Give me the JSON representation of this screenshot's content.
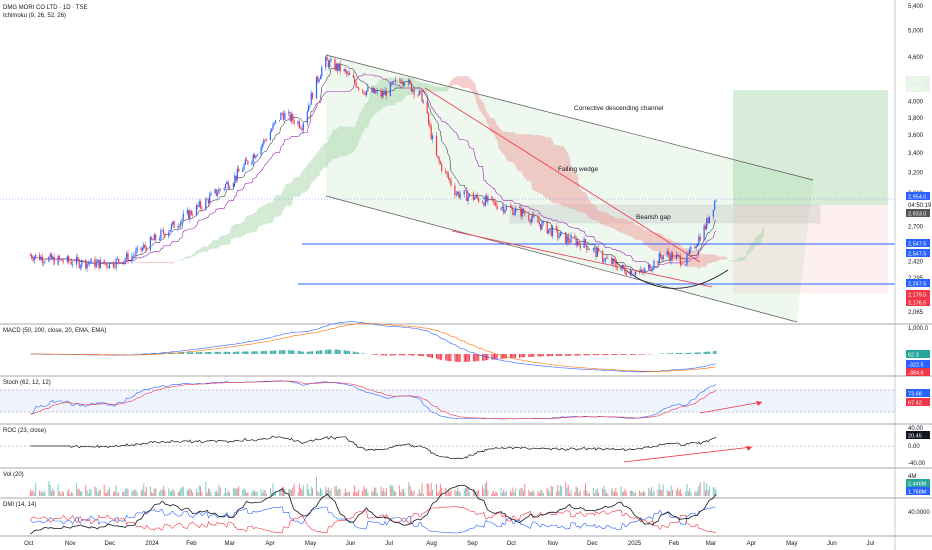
{
  "header": {
    "title": "DMG MORI CO LTD · 1D · TSE",
    "indicator": "Ichimoku (9, 26, 52, 26)"
  },
  "chart_data": [
    {
      "type": "candlestick",
      "title": "DMG MORI CO LTD · 1D · TSE",
      "ylim": [
        2000,
        5400
      ],
      "y_scale": "log",
      "y_ticks": [
        "5,400",
        "5,000",
        "4,600",
        "4,200",
        "4,000",
        "3,800",
        "3,600",
        "3,400",
        "3,200",
        "3,000",
        "2,700",
        "2,420",
        "2,295",
        "2,065"
      ],
      "x_ticks": [
        "Oct",
        "Nov",
        "Dec",
        "2024",
        "Feb",
        "Mar",
        "Apr",
        "May",
        "Jun",
        "Jul",
        "Aug",
        "Sep",
        "Oct",
        "Nov",
        "Dec",
        "2025",
        "Feb",
        "Mar",
        "Apr",
        "May",
        "Jun",
        "Jul"
      ],
      "price_path": [
        [
          "2023-10-01",
          2470
        ],
        [
          "2023-10-20",
          2430
        ],
        [
          "2023-11-10",
          2410
        ],
        [
          "2023-12-01",
          2400
        ],
        [
          "2023-12-20",
          2470
        ],
        [
          "2024-01-15",
          2680
        ],
        [
          "2024-02-10",
          2900
        ],
        [
          "2024-03-05",
          3150
        ],
        [
          "2024-03-25",
          3480
        ],
        [
          "2024-04-10",
          3850
        ],
        [
          "2024-04-25",
          3720
        ],
        [
          "2024-05-12",
          4540
        ],
        [
          "2024-05-25",
          4420
        ],
        [
          "2024-06-10",
          4150
        ],
        [
          "2024-06-25",
          4080
        ],
        [
          "2024-07-10",
          4310
        ],
        [
          "2024-07-25",
          4050
        ],
        [
          "2024-08-05",
          3350
        ],
        [
          "2024-08-20",
          3000
        ],
        [
          "2024-09-05",
          2950
        ],
        [
          "2024-09-25",
          2870
        ],
        [
          "2024-10-10",
          2820
        ],
        [
          "2024-10-25",
          2700
        ],
        [
          "2024-11-10",
          2600
        ],
        [
          "2024-11-25",
          2560
        ],
        [
          "2024-12-10",
          2440
        ],
        [
          "2024-12-25",
          2360
        ],
        [
          "2025-01-08",
          2330
        ],
        [
          "2025-01-25",
          2480
        ],
        [
          "2025-02-10",
          2420
        ],
        [
          "2025-02-25",
          2700
        ],
        [
          "2025-03-05",
          2954
        ]
      ],
      "price_labels": [
        {
          "label": "2,954.0",
          "sub": "04:50:19",
          "color": "#2962ff"
        },
        {
          "label": "2,933.0",
          "color": "#555555"
        },
        {
          "label": "2,547.5",
          "color": "#2962ff"
        },
        {
          "label": "2,547.5",
          "color": "#2962ff"
        },
        {
          "label": "2,247.5",
          "color": "#2962ff"
        },
        {
          "label": "2,179.5",
          "color": "#f23645"
        },
        {
          "label": "2,176.5",
          "color": "#f23645"
        },
        {
          "label": "4,375",
          "color": "#e8f3e8"
        },
        {
          "label": "4,369",
          "color": "#e8f3e8"
        }
      ],
      "annotations": [
        "Corrective descending channel",
        "Falling wedge",
        "Bearish gap"
      ],
      "horizontal_levels": [
        2547.5,
        2247.5
      ],
      "target_zone": {
        "entry": 2954,
        "target": 4375,
        "stop": 2179.5
      },
      "colors": {
        "up": "#2962ff",
        "down": "#f23645",
        "tenkan": "#131722",
        "kijun": "#9c27b0",
        "cloud_up": "#a5d6a7",
        "cloud_down": "#ef9a9a",
        "channel": "#43a047",
        "levels": "#2962ff",
        "wedge": "#f23645"
      }
    },
    {
      "type": "histogram",
      "title": "MACD (50, 200, close, 20, EMA, EMA)",
      "ylim": [
        -400,
        1000
      ],
      "y_ticks": [
        "1,000.0"
      ],
      "values": [
        {
          "label": "62.3",
          "color": "#26a69a"
        },
        {
          "label": "-322.5",
          "color": "#2962ff"
        },
        {
          "label": "-384.8",
          "color": "#f23645"
        }
      ]
    },
    {
      "type": "line",
      "title": "Stoch (62, 12, 12)",
      "ylim": [
        0,
        100
      ],
      "values": [
        {
          "label": "73.68",
          "color": "#2962ff"
        },
        {
          "label": "67.42",
          "color": "#f23645"
        }
      ]
    },
    {
      "type": "line",
      "title": "ROC (23, close)",
      "ylim": [
        -40,
        40
      ],
      "y_ticks": [
        "40.00",
        "0.00",
        "-40.00"
      ],
      "values": [
        {
          "label": "20.45",
          "color": "#131722"
        }
      ]
    },
    {
      "type": "bar",
      "title": "Vol (20)",
      "y_ticks": [
        "4M"
      ],
      "values": [
        {
          "label": "2.446M",
          "color": "#26a69a"
        },
        {
          "label": "1.768M",
          "color": "#2962ff"
        }
      ]
    },
    {
      "type": "line",
      "title": "DMI (14, 14)",
      "ylim": [
        0,
        60
      ],
      "y_ticks": [
        "40.0000"
      ]
    }
  ]
}
